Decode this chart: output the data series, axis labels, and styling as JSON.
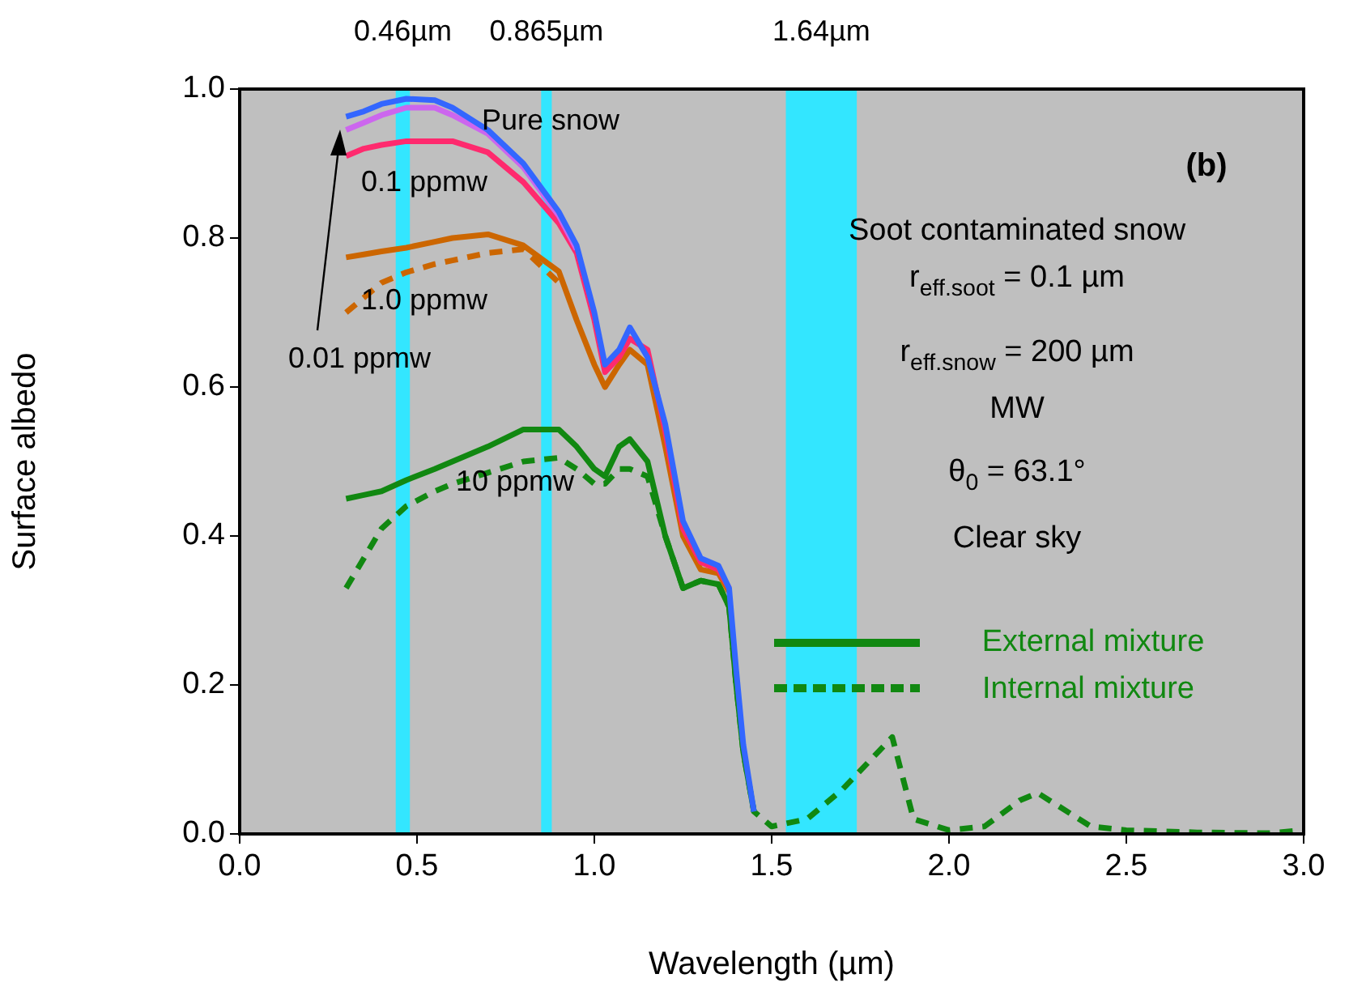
{
  "chart_data": {
    "type": "line",
    "xlabel": "Wavelength (µm)",
    "ylabel": "Surface albedo",
    "x": [
      0.3,
      0.35,
      0.4,
      0.47,
      0.55,
      0.6,
      0.7,
      0.8,
      0.9,
      0.95,
      1.0,
      1.03,
      1.07,
      1.1,
      1.15,
      1.2,
      1.25,
      1.3,
      1.35,
      1.38,
      1.4,
      1.42,
      1.45,
      1.5,
      1.6,
      1.7,
      1.8,
      1.84,
      1.9,
      2.0,
      2.1,
      2.2,
      2.25,
      2.3,
      2.4,
      2.5,
      2.7,
      2.9,
      3.0
    ],
    "series": [
      {
        "name": "Pure snow",
        "color": "#3366ff",
        "line_style": "solid",
        "values": [
          0.963,
          0.97,
          0.98,
          0.987,
          0.985,
          0.975,
          0.945,
          0.9,
          0.835,
          0.79,
          0.7,
          0.63,
          0.65,
          0.68,
          0.64,
          0.55,
          0.42,
          0.37,
          0.36,
          0.33,
          0.22,
          0.12,
          0.03,
          null,
          null,
          null,
          null,
          null,
          null,
          null,
          null,
          null,
          null,
          null,
          null,
          null,
          null,
          null,
          null
        ]
      },
      {
        "name": "0.01 ppmw",
        "color": "#cc66ee",
        "line_style": "solid",
        "values": [
          0.945,
          0.955,
          0.965,
          0.975,
          0.975,
          0.965,
          0.94,
          0.895,
          0.83,
          0.785,
          null,
          null,
          null,
          null,
          null,
          null,
          null,
          null,
          null,
          null,
          null,
          null,
          null,
          null,
          null,
          null,
          null,
          null,
          null,
          null,
          null,
          null,
          null,
          null,
          null,
          null,
          null,
          null,
          null
        ]
      },
      {
        "name": "0.1 ppmw",
        "color": "#ff2a6e",
        "line_style": "solid",
        "values": [
          0.91,
          0.92,
          0.925,
          0.93,
          0.93,
          0.93,
          0.915,
          0.875,
          0.82,
          0.78,
          0.69,
          0.62,
          0.64,
          0.665,
          0.65,
          0.54,
          0.41,
          0.365,
          0.355,
          0.33,
          null,
          null,
          null,
          null,
          null,
          null,
          null,
          null,
          null,
          null,
          null,
          null,
          null,
          null,
          null,
          null,
          null,
          null,
          null
        ]
      },
      {
        "name": "1.0 ppmw",
        "color": "#cc6600",
        "line_style": "solid",
        "values": [
          0.774,
          0.778,
          0.782,
          0.787,
          0.795,
          0.8,
          0.805,
          0.79,
          0.755,
          0.69,
          0.63,
          0.6,
          0.63,
          0.65,
          0.63,
          0.52,
          0.4,
          0.355,
          0.35,
          0.325,
          null,
          null,
          null,
          null,
          null,
          null,
          null,
          null,
          null,
          null,
          null,
          null,
          null,
          null,
          null,
          null,
          null,
          null,
          null
        ]
      },
      {
        "color": "#cc6600",
        "line_style": "dashed",
        "values": [
          0.7,
          0.72,
          0.74,
          0.754,
          0.765,
          0.77,
          0.78,
          0.785,
          0.74,
          null,
          null,
          null,
          null,
          null,
          null,
          null,
          null,
          null,
          null,
          null,
          null,
          null,
          null,
          null,
          null,
          null,
          null,
          null,
          null,
          null,
          null,
          null,
          null,
          null,
          null,
          null,
          null,
          null,
          null
        ]
      },
      {
        "name": "10 ppmw",
        "color": "#118811",
        "line_style": "solid",
        "values": [
          0.45,
          0.455,
          0.46,
          0.475,
          0.49,
          0.5,
          0.52,
          0.543,
          0.543,
          0.52,
          0.49,
          0.48,
          0.52,
          0.53,
          0.5,
          0.4,
          0.33,
          0.34,
          0.335,
          0.305,
          0.2,
          0.11,
          0.03,
          null,
          null,
          null,
          null,
          null,
          null,
          null,
          null,
          null,
          null,
          null,
          null,
          null,
          null,
          null,
          null
        ]
      },
      {
        "color": "#118811",
        "line_style": "dashed",
        "values": [
          0.33,
          0.37,
          0.41,
          0.44,
          0.46,
          0.47,
          0.485,
          0.5,
          0.505,
          0.49,
          0.47,
          0.47,
          0.49,
          0.49,
          0.48,
          0.4,
          0.33,
          0.34,
          0.335,
          0.305,
          0.2,
          0.11,
          0.03,
          0.01,
          0.02,
          0.06,
          0.11,
          0.13,
          0.02,
          0.005,
          0.01,
          0.045,
          0.055,
          0.04,
          0.01,
          0.005,
          0.002,
          0.001,
          0.005
        ]
      }
    ],
    "xlim": [
      0,
      3
    ],
    "ylim": [
      0,
      1
    ],
    "xticks": [
      {
        "value": 0,
        "label": "0.0"
      },
      {
        "value": 0.5,
        "label": "0.5"
      },
      {
        "value": 1,
        "label": "1.0"
      },
      {
        "value": 1.5,
        "label": "1.5"
      },
      {
        "value": 2,
        "label": "2.0"
      },
      {
        "value": 2.5,
        "label": "2.5"
      },
      {
        "value": 3,
        "label": "3.0"
      }
    ],
    "yticks": [
      {
        "value": 0,
        "label": "0.0"
      },
      {
        "value": 0.2,
        "label": "0.2"
      },
      {
        "value": 0.4,
        "label": "0.4"
      },
      {
        "value": 0.6,
        "label": "0.6"
      },
      {
        "value": 0.8,
        "label": "0.8"
      },
      {
        "value": 1,
        "label": "1.0"
      }
    ],
    "bands": [
      {
        "axis": "x",
        "from": 0.44,
        "to": 0.48,
        "label": "0.46µm",
        "color": "#33e6ff"
      },
      {
        "axis": "x",
        "from": 0.85,
        "to": 0.88,
        "label": "0.865µm",
        "color": "#33e6ff"
      },
      {
        "axis": "x",
        "from": 1.54,
        "to": 1.74,
        "label": "1.64µm",
        "color": "#33e6ff"
      }
    ],
    "annotations": [
      "(b)",
      "Soot contaminated snow",
      "r$_{eff.soot}$ = 0.1 µm",
      "r$_{eff.snow}$ = 200 µm",
      "MW",
      "θ$_{0}$ = 63.1°",
      "Clear sky",
      "External mixture",
      "Internal mixture"
    ],
    "grid": false,
    "legend": false
  }
}
